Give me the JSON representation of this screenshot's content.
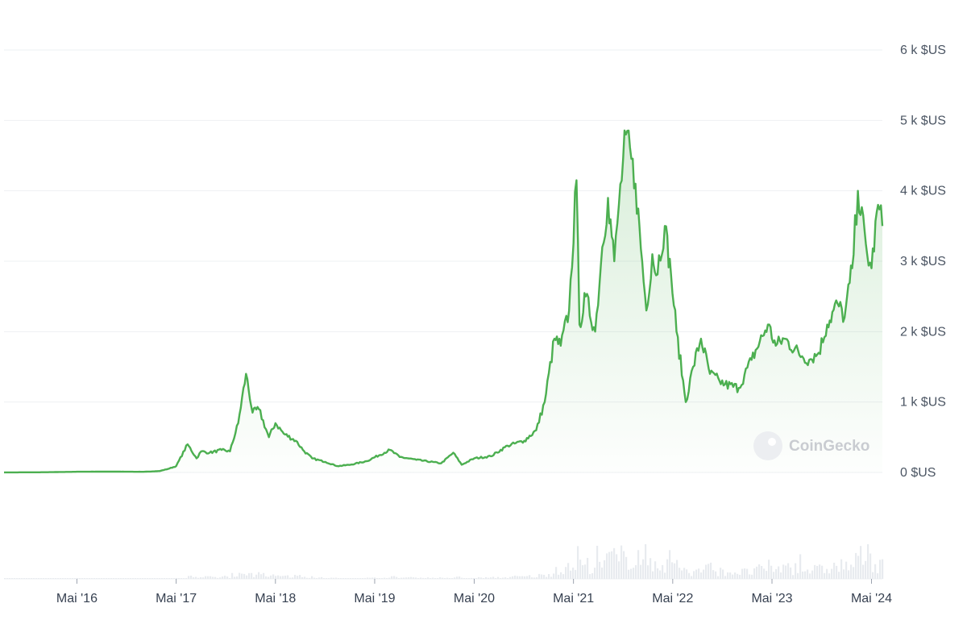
{
  "watermark": "CoinGecko",
  "colors": {
    "line": "#4caf50",
    "area_top": "#4caf50",
    "grid": "#eef0f3",
    "volume": "#e8ebef",
    "axis_text": "#4b5563"
  },
  "chart_data": {
    "type": "line",
    "title": "",
    "xlabel": "",
    "ylabel": "",
    "ylim": [
      0,
      6000
    ],
    "xlim": [
      "2015-08-07",
      "2024-06-10"
    ],
    "grid": true,
    "legend": "none",
    "y_tick_labels": [
      "0 $US",
      "1 k $US",
      "2 k $US",
      "3 k $US",
      "4 k $US",
      "5 k $US",
      "6 k $US"
    ],
    "y_tick_values": [
      0,
      1000,
      2000,
      3000,
      4000,
      5000,
      6000
    ],
    "x_tick_labels": [
      "Mai '16",
      "Mai '17",
      "Mai '18",
      "Mai '19",
      "Mai '20",
      "Mai '21",
      "Mai '22",
      "Mai '23",
      "Mai '24"
    ],
    "x_tick_dates": [
      "2016-05-01",
      "2017-05-01",
      "2018-05-01",
      "2019-05-01",
      "2020-05-01",
      "2021-05-01",
      "2022-05-01",
      "2023-05-01",
      "2024-05-01"
    ],
    "series": [
      {
        "x": [
          "2015-08-07",
          "2016-01-01",
          "2016-05-01",
          "2016-09-01",
          "2017-01-01",
          "2017-03-01",
          "2017-04-01",
          "2017-05-01",
          "2017-06-12",
          "2017-07-15",
          "2017-08-01",
          "2017-09-01",
          "2017-10-15",
          "2017-11-15",
          "2017-12-15",
          "2018-01-13",
          "2018-02-06",
          "2018-03-01",
          "2018-04-07",
          "2018-05-01",
          "2018-06-01",
          "2018-07-15",
          "2018-08-15",
          "2018-09-13",
          "2018-11-01",
          "2018-12-15",
          "2019-02-01",
          "2019-04-01",
          "2019-06-26",
          "2019-08-01",
          "2019-10-01",
          "2020-01-01",
          "2020-02-14",
          "2020-03-16",
          "2020-05-01",
          "2020-07-01",
          "2020-09-01",
          "2020-11-01",
          "2020-12-15",
          "2021-01-15",
          "2021-02-20",
          "2021-03-15",
          "2021-04-15",
          "2021-05-12",
          "2021-05-23",
          "2021-06-15",
          "2021-07-20",
          "2021-08-15",
          "2021-09-05",
          "2021-09-28",
          "2021-10-15",
          "2021-11-10",
          "2021-12-15",
          "2022-01-24",
          "2022-02-15",
          "2022-03-01",
          "2022-04-02",
          "2022-04-25",
          "2022-05-15",
          "2022-06-18",
          "2022-07-15",
          "2022-08-13",
          "2022-09-15",
          "2022-10-20",
          "2022-11-09",
          "2022-12-30",
          "2023-02-15",
          "2023-04-16",
          "2023-05-15",
          "2023-06-15",
          "2023-08-20",
          "2023-09-15",
          "2023-10-20",
          "2023-11-20",
          "2023-12-28",
          "2024-01-23",
          "2024-02-20",
          "2024-03-12",
          "2024-04-15",
          "2024-05-01",
          "2024-05-25",
          "2024-06-10"
        ],
        "values": [
          1,
          3,
          10,
          12,
          9,
          20,
          50,
          90,
          400,
          200,
          300,
          280,
          320,
          300,
          700,
          1400,
          850,
          900,
          500,
          700,
          550,
          450,
          300,
          200,
          150,
          90,
          110,
          160,
          320,
          220,
          180,
          130,
          280,
          110,
          200,
          230,
          380,
          450,
          600,
          1000,
          1900,
          1800,
          2300,
          4150,
          2100,
          2500,
          2000,
          3200,
          3900,
          3000,
          3800,
          4800,
          4100,
          2300,
          3100,
          2800,
          3500,
          2800,
          2000,
          1000,
          1500,
          1900,
          1400,
          1300,
          1250,
          1200,
          1600,
          2100,
          1800,
          1900,
          1650,
          1600,
          1700,
          2100,
          2400,
          2200,
          2900,
          4000,
          3100,
          2900,
          3800,
          3500
        ]
      }
    ],
    "volume_note": "trading volume bars shown unlabeled below price"
  }
}
